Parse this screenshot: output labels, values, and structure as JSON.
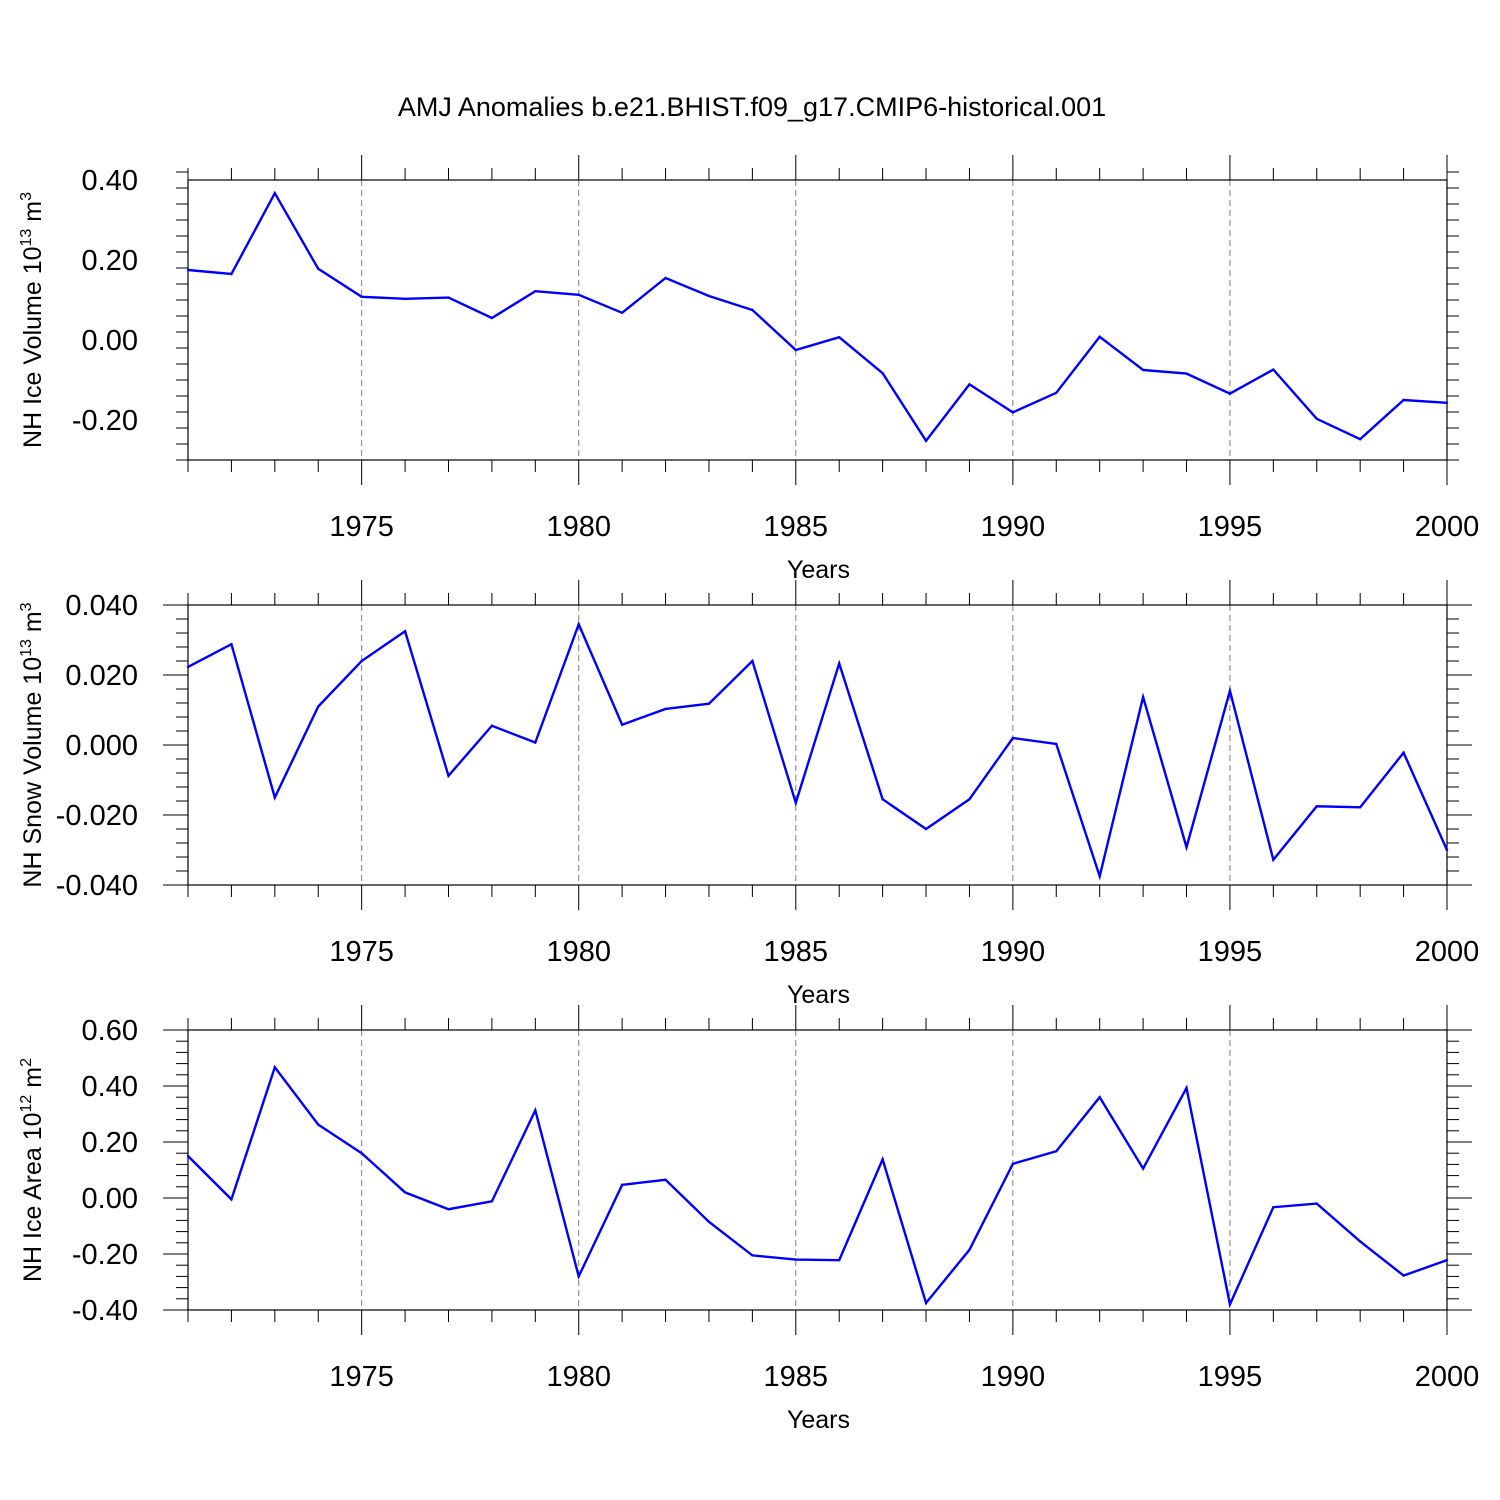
{
  "figure_title": "AMJ Anomalies b.e21.BHIST.f09_g17.CMIP6-historical.001",
  "colors": {
    "series": "#0000ff",
    "axes": "#000000",
    "grid": "#808080"
  },
  "chart_data": [
    {
      "type": "line",
      "xlabel": "Years",
      "ylabel": {
        "text": "NH Ice Volume 10",
        "sup": "13",
        "text2": " m",
        "sup2": "3"
      },
      "xlim": [
        1971,
        2000
      ],
      "ylim": [
        -0.3,
        0.4
      ],
      "xticks": [
        1975,
        1980,
        1985,
        1990,
        1995,
        2000
      ],
      "yticks": [
        -0.2,
        0.0,
        0.2,
        0.4
      ],
      "ytick_labels": [
        "-0.20",
        "0.00",
        "0.20",
        "0.40"
      ],
      "grid": "vertical dashed at major x ticks",
      "x": [
        1971,
        1972,
        1973,
        1974,
        1975,
        1976,
        1977,
        1978,
        1979,
        1980,
        1981,
        1982,
        1983,
        1984,
        1985,
        1986,
        1987,
        1988,
        1989,
        1990,
        1991,
        1992,
        1993,
        1994,
        1995,
        1996,
        1997,
        1998,
        1999,
        2000
      ],
      "values": [
        0.175,
        0.165,
        0.367,
        0.178,
        0.108,
        0.103,
        0.106,
        0.055,
        0.122,
        0.113,
        0.068,
        0.155,
        0.11,
        0.075,
        -0.025,
        0.007,
        -0.083,
        -0.252,
        -0.111,
        -0.181,
        -0.132,
        0.008,
        -0.075,
        -0.084,
        -0.134,
        -0.074,
        -0.197,
        -0.248,
        -0.15,
        -0.157
      ]
    },
    {
      "type": "line",
      "xlabel": "Years",
      "ylabel": {
        "text": "NH Snow Volume 10",
        "sup": "13",
        "text2": " m",
        "sup2": "3"
      },
      "xlim": [
        1971,
        2000
      ],
      "ylim": [
        -0.04,
        0.04
      ],
      "xticks": [
        1975,
        1980,
        1985,
        1990,
        1995,
        2000
      ],
      "yticks": [
        -0.04,
        -0.02,
        0.0,
        0.02,
        0.04
      ],
      "ytick_labels": [
        "-0.040",
        "-0.020",
        "0.000",
        "0.020",
        "0.040"
      ],
      "grid": "vertical dashed at major x ticks",
      "x": [
        1971,
        1972,
        1973,
        1974,
        1975,
        1976,
        1977,
        1978,
        1979,
        1980,
        1981,
        1982,
        1983,
        1984,
        1985,
        1986,
        1987,
        1988,
        1989,
        1990,
        1991,
        1992,
        1993,
        1994,
        1995,
        1996,
        1997,
        1998,
        1999,
        2000
      ],
      "values": [
        0.0223,
        0.0288,
        -0.015,
        0.011,
        0.024,
        0.0325,
        -0.0088,
        0.0055,
        0.0007,
        0.0345,
        0.0058,
        0.0103,
        0.0118,
        0.024,
        -0.0165,
        0.0233,
        -0.0155,
        -0.024,
        -0.0155,
        0.002,
        0.0003,
        -0.0375,
        0.0137,
        -0.0292,
        0.0155,
        -0.0328,
        -0.0175,
        -0.0178,
        -0.0022,
        -0.03
      ]
    },
    {
      "type": "line",
      "xlabel": "Years",
      "ylabel": {
        "text": "NH Ice Area 10",
        "sup": "12",
        "text2": " m",
        "sup2": "2"
      },
      "xlim": [
        1971,
        2000
      ],
      "ylim": [
        -0.4,
        0.6
      ],
      "xticks": [
        1975,
        1980,
        1985,
        1990,
        1995,
        2000
      ],
      "yticks": [
        -0.4,
        -0.2,
        0.0,
        0.2,
        0.4,
        0.6
      ],
      "ytick_labels": [
        "-0.40",
        "-0.20",
        "0.00",
        "0.20",
        "0.40",
        "0.60"
      ],
      "grid": "vertical dashed at major x ticks",
      "x": [
        1971,
        1972,
        1973,
        1974,
        1975,
        1976,
        1977,
        1978,
        1979,
        1980,
        1981,
        1982,
        1983,
        1984,
        1985,
        1986,
        1987,
        1988,
        1989,
        1990,
        1991,
        1992,
        1993,
        1994,
        1995,
        1996,
        1997,
        1998,
        1999,
        2000
      ],
      "values": [
        0.15,
        -0.005,
        0.467,
        0.262,
        0.16,
        0.02,
        -0.04,
        -0.012,
        0.313,
        -0.28,
        0.047,
        0.065,
        -0.085,
        -0.205,
        -0.22,
        -0.222,
        0.138,
        -0.375,
        -0.185,
        0.122,
        0.167,
        0.36,
        0.105,
        0.393,
        -0.38,
        -0.033,
        -0.02,
        -0.155,
        -0.277,
        -0.222
      ]
    }
  ]
}
